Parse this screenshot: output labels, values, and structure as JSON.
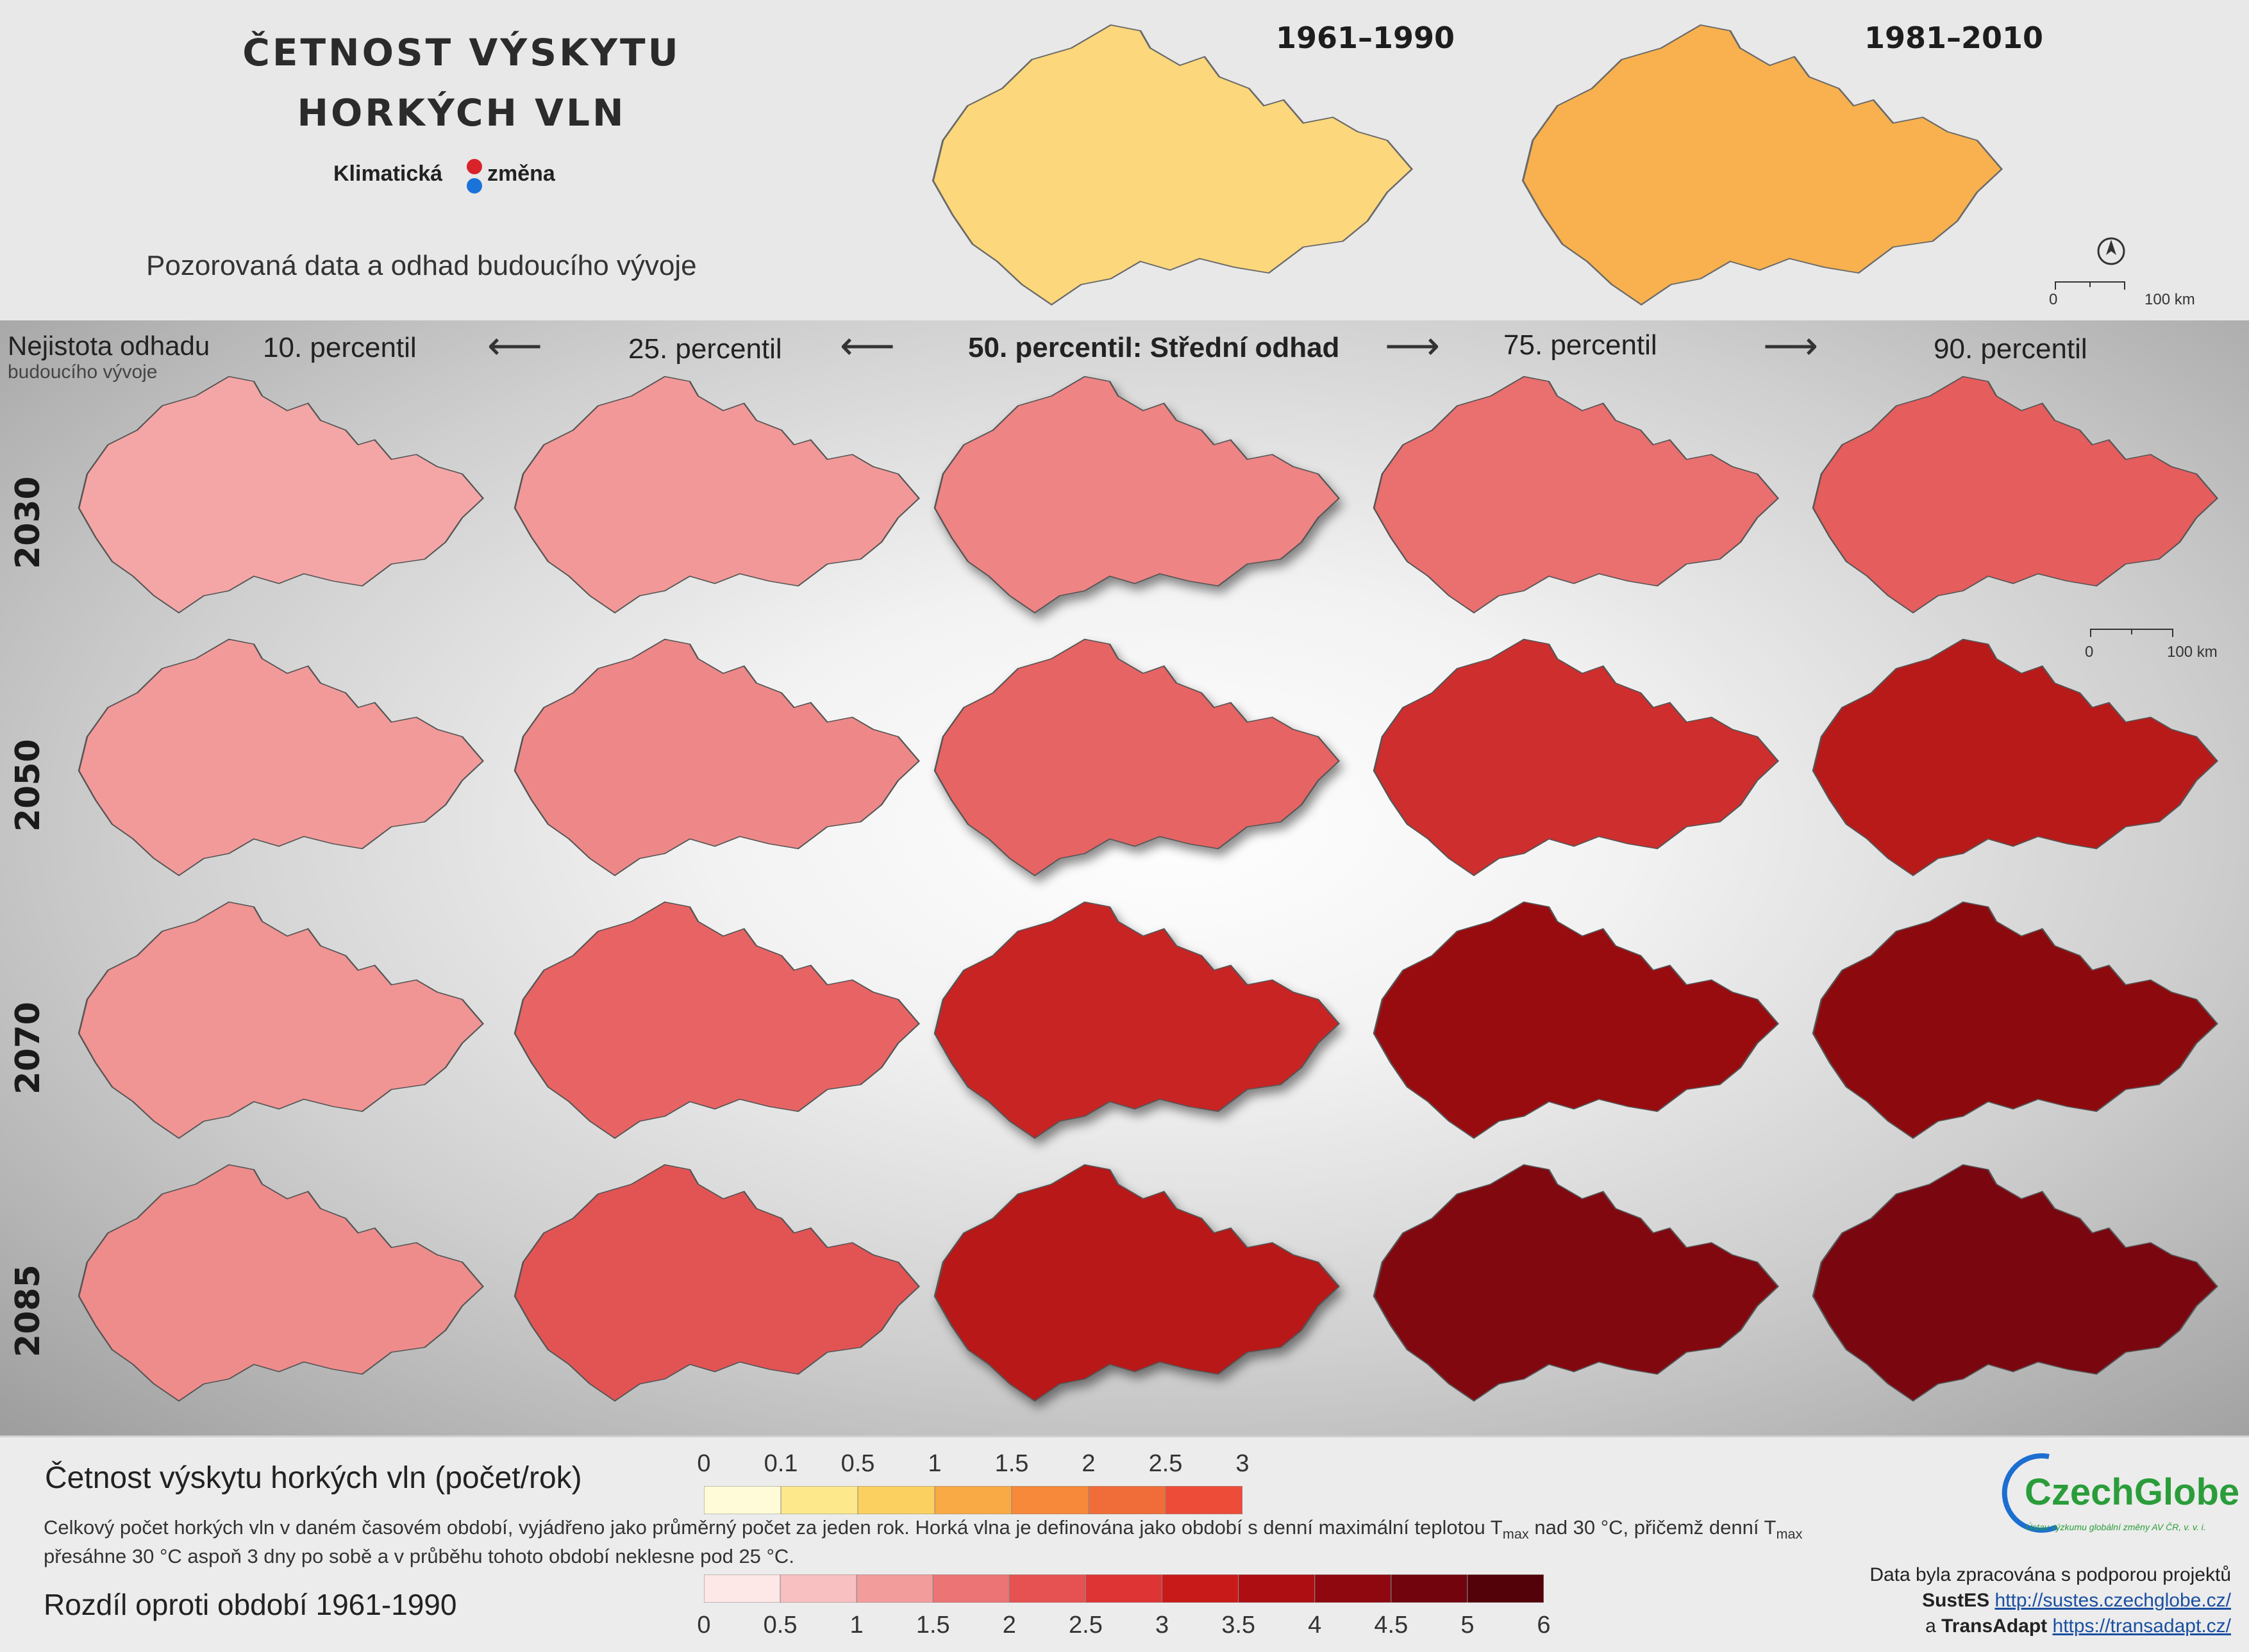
{
  "header": {
    "title_line1": "ČETNOST VÝSKYTU",
    "title_line2": "HORKÝCH VLN",
    "logo_left": "Klimatická",
    "logo_right": "změna",
    "subtitle": "Pozorovaná data a odhad budoucího vývoje",
    "observed_periods": [
      "1961–1990",
      "1981–2010"
    ],
    "scale_start": "0",
    "scale_end": "100 km"
  },
  "grid": {
    "uncertainty_label_line1": "Nejistota odhadu",
    "uncertainty_label_line2": "budoucího vývoje",
    "percentiles": [
      "10. percentil",
      "25. percentil",
      "50. percentil: Střední odhad",
      "75. percentil",
      "90. percentil"
    ],
    "years": [
      "2030",
      "2050",
      "2070",
      "2085"
    ],
    "scale_start": "0",
    "scale_end": "100 km"
  },
  "legend": {
    "frequency_title": "Četnost výskytu horkých vln (počet/rok)",
    "frequency_ticks": [
      "0",
      "0.1",
      "0.5",
      "1",
      "1.5",
      "2",
      "2.5",
      "3"
    ],
    "frequency_colors": [
      "#fffbd9",
      "#fde98c",
      "#fcd060",
      "#f9aa44",
      "#f6893a",
      "#f06d3a",
      "#ec4c38"
    ],
    "description_part1": "Celkový počet horkých vln v daném časovém období, vyjádřeno jako průměrný počet za jeden rok. Horká vlna je definována jako období s denní maximální teplotou T",
    "description_sub1": "max",
    "description_part2": " nad 30 °C, přičemž denní T",
    "description_sub2": "max",
    "description_part3": " přesáhne 30 °C aspoň 3 dny po sobě a v průběhu tohoto období neklesne pod 25 °C.",
    "difference_title": "Rozdíl oproti období 1961-1990",
    "difference_ticks": [
      "0",
      "0.5",
      "1",
      "1.5",
      "2",
      "2.5",
      "3",
      "3.5",
      "4",
      "4.5",
      "5",
      "6"
    ],
    "difference_colors": [
      "#fde7e7",
      "#f8c0c0",
      "#f29c9c",
      "#ec7474",
      "#e65252",
      "#de3434",
      "#c91a1a",
      "#ad0e12",
      "#8f0810",
      "#72040d",
      "#530209"
    ]
  },
  "credits": {
    "org_name": "CzechGlobe",
    "org_subtitle": "Ústav výzkumu globální změny AV ČR, v. v. i.",
    "line1": "Data byla zpracována s podporou projektů",
    "project1": "SustES",
    "url1": "http://sustes.czechglobe.cz/",
    "line3_prefix": "a",
    "project2": "TransAdapt",
    "url2": "https://transadapt.cz/"
  },
  "colors": {
    "observed_1961": "#fcd77c",
    "observed_1981": "#f8b14e",
    "grid_fill": [
      [
        "#f4a6a6",
        "#f29898",
        "#ee8484",
        "#ea6f6f",
        "#e55d5d"
      ],
      [
        "#f29a9a",
        "#ee8888",
        "#e76464",
        "#cf2e2e",
        "#b81a1a"
      ],
      [
        "#f09494",
        "#e86464",
        "#c82424",
        "#980c10",
        "#8c0a0e"
      ],
      [
        "#ee8c8c",
        "#e25454",
        "#b81818",
        "#820810",
        "#7a0610"
      ]
    ]
  }
}
